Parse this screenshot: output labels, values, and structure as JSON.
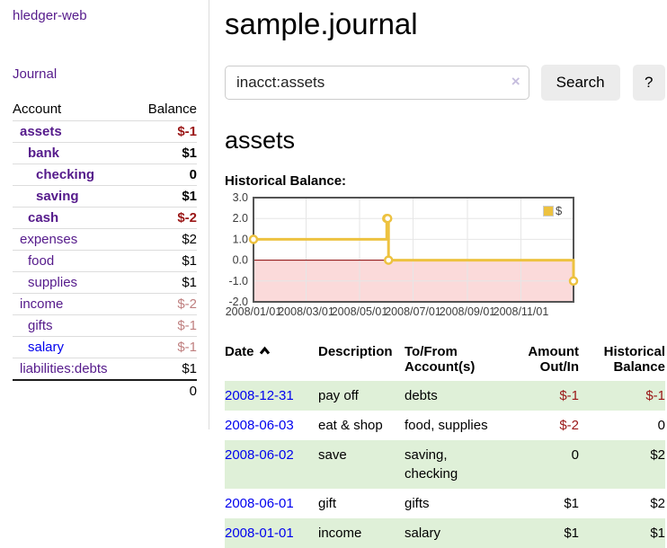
{
  "app": {
    "title": "hledger-web"
  },
  "sidebar": {
    "journal_link": "Journal",
    "accounts_table": {
      "account_header": "Account",
      "balance_header": "Balance",
      "rows": [
        {
          "name": "assets",
          "balance": "$-1"
        },
        {
          "name": "bank",
          "balance": "$1"
        },
        {
          "name": "checking",
          "balance": "0"
        },
        {
          "name": "saving",
          "balance": "$1"
        },
        {
          "name": "cash",
          "balance": "$-2"
        },
        {
          "name": "expenses",
          "balance": "$2"
        },
        {
          "name": "food",
          "balance": "$1"
        },
        {
          "name": "supplies",
          "balance": "$1"
        },
        {
          "name": "income",
          "balance": "$-2"
        },
        {
          "name": "gifts",
          "balance": "$-1"
        },
        {
          "name": "salary",
          "balance": "$-1"
        },
        {
          "name": "liabilities:debts",
          "balance": "$1"
        }
      ],
      "total": "0"
    }
  },
  "header": {
    "title": "sample.journal"
  },
  "search": {
    "value": "inacct:assets",
    "clear_icon": "×",
    "button_label": "Search",
    "help_label": "?"
  },
  "account_page": {
    "title": "assets",
    "chart_label": "Historical Balance:"
  },
  "chart_data": {
    "type": "line",
    "title": "Historical Balance",
    "series": [
      {
        "name": "$",
        "color": "#edc240",
        "step": true,
        "points": [
          [
            "2008-01-01",
            1
          ],
          [
            "2008-06-01",
            2
          ],
          [
            "2008-06-02",
            2
          ],
          [
            "2008-06-03",
            0
          ],
          [
            "2008-12-31",
            -1
          ]
        ]
      }
    ],
    "xlim": [
      "2008-01-01",
      "2008-12-31"
    ],
    "ylim": [
      -2,
      3
    ],
    "y_ticks": [
      3.0,
      2.0,
      1.0,
      0.0,
      -1.0,
      -2.0
    ],
    "x_ticks": [
      "2008/01/01",
      "2008/03/01",
      "2008/05/01",
      "2008/07/01",
      "2008/09/01",
      "2008/11/01"
    ],
    "grid": true,
    "grid_color": "#e6e6e6",
    "border_color": "#545454",
    "zero_line_color": "#8b0000",
    "negative_region_fill": "#fbdada",
    "legend_position": "top-right"
  },
  "register": {
    "headers": {
      "date": "Date",
      "description": "Description",
      "to_from": "To/From Account(s)",
      "amount": "Amount Out/In",
      "balance": "Historical Balance"
    },
    "rows": [
      {
        "date": "2008-12-31",
        "description": "pay off",
        "to_from": "debts",
        "amount": "$-1",
        "balance": "$-1"
      },
      {
        "date": "2008-06-03",
        "description": "eat & shop",
        "to_from": "food, supplies",
        "amount": "$-2",
        "balance": "0"
      },
      {
        "date": "2008-06-02",
        "description": "save",
        "to_from": "saving, checking",
        "amount": "0",
        "balance": "$2"
      },
      {
        "date": "2008-06-01",
        "description": "gift",
        "to_from": "gifts",
        "amount": "$1",
        "balance": "$2"
      },
      {
        "date": "2008-01-01",
        "description": "income",
        "to_from": "salary",
        "amount": "$1",
        "balance": "$1"
      }
    ]
  },
  "colors": {
    "link_purple": "#551a8b",
    "link_blue": "#0000ee",
    "negative_strong": "#9a1616",
    "negative_muted": "#bf7f7f",
    "row_highlight_green": "#dff0d8",
    "chart_series_yellow": "#edc240"
  }
}
